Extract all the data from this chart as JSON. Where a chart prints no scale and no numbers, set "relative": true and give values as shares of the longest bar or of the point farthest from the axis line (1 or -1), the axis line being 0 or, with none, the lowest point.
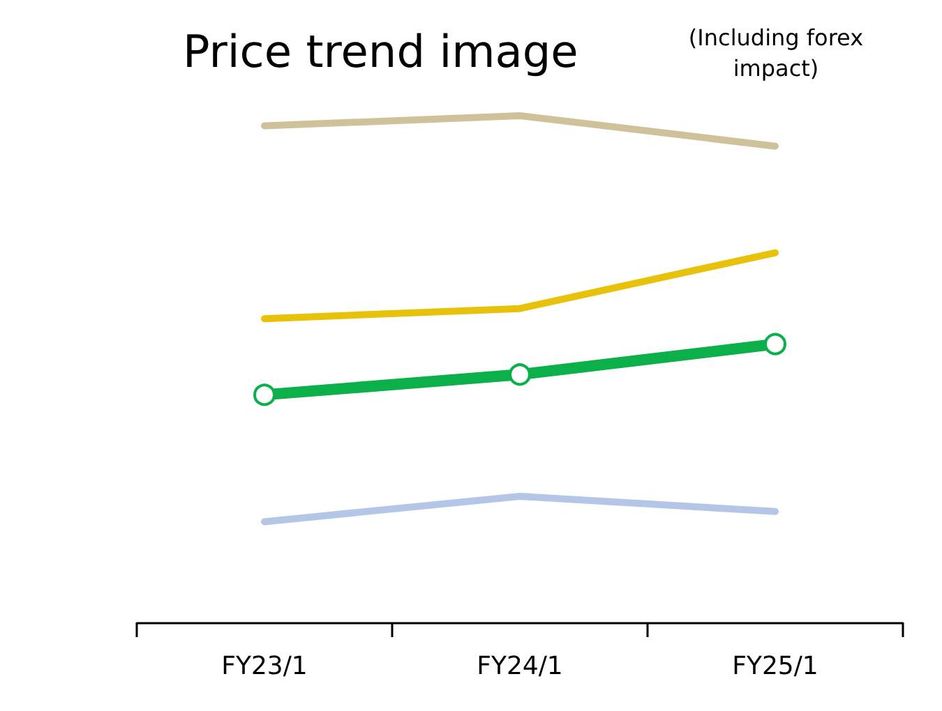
{
  "chart_data": {
    "type": "line",
    "title": "Price trend image",
    "annotations": [
      "(Including forex impact)"
    ],
    "categories": [
      "FY23/1",
      "FY24/1",
      "FY25/1"
    ],
    "relative": true,
    "grid": false,
    "series": [
      {
        "color": "#cfc29b",
        "values": [
          0.98,
          1,
          0.94
        ],
        "marker": "none"
      },
      {
        "color": "#e8c10b",
        "values": [
          0.6,
          0.62,
          0.73
        ],
        "marker": "none"
      },
      {
        "color": "#0bb04b",
        "values": [
          0.45,
          0.49,
          0.55
        ],
        "marker": "circle"
      },
      {
        "color": "#b4c6e7",
        "values": [
          0.2,
          0.25,
          0.22
        ],
        "marker": "none"
      }
    ]
  }
}
